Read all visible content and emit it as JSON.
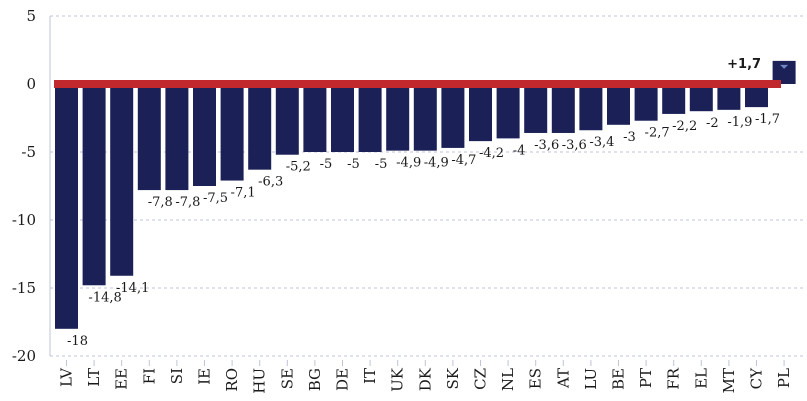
{
  "colors": {
    "bar": "#1b2157",
    "zero_line": "#c0282e",
    "grid": "#bfc4d6",
    "axis": "#bfc4d6"
  },
  "chart_data": {
    "type": "bar",
    "title": "",
    "xlabel": "",
    "ylabel": "",
    "ylim": [
      -20,
      5
    ],
    "yticks": [
      5,
      0,
      -5,
      -10,
      -15,
      -20
    ],
    "grid": true,
    "categories": [
      "LV",
      "LT",
      "EE",
      "FI",
      "SI",
      "IE",
      "RO",
      "HU",
      "SE",
      "BG",
      "DE",
      "IT",
      "UK",
      "DK",
      "SK",
      "CZ",
      "NL",
      "ES",
      "AT",
      "LU",
      "BE",
      "PT",
      "FR",
      "EL",
      "MT",
      "CY",
      "PL"
    ],
    "values": [
      -18,
      -14.8,
      -14.1,
      -7.8,
      -7.8,
      -7.5,
      -7.1,
      -6.3,
      -5.2,
      -5,
      -5,
      -5,
      -4.9,
      -4.9,
      -4.7,
      -4.2,
      -4,
      -3.6,
      -3.6,
      -3.4,
      -3,
      -2.7,
      -2.2,
      -2,
      -1.9,
      -1.7,
      1.7
    ],
    "value_labels": [
      "-18",
      "-14,8",
      "-14,1",
      "-7,8",
      "-7,8",
      "-7,5",
      "-7,1",
      "-6,3",
      "-5,2",
      "-5",
      "-5",
      "-5",
      "-4,9",
      "-4,9",
      "-4,7",
      "-4,2",
      "-4",
      "-3,6",
      "-3,6",
      "-3,4",
      "-3",
      "-2,7",
      "-2,2",
      "-2",
      "-1,9",
      "-1,7",
      "+1,7"
    ]
  }
}
